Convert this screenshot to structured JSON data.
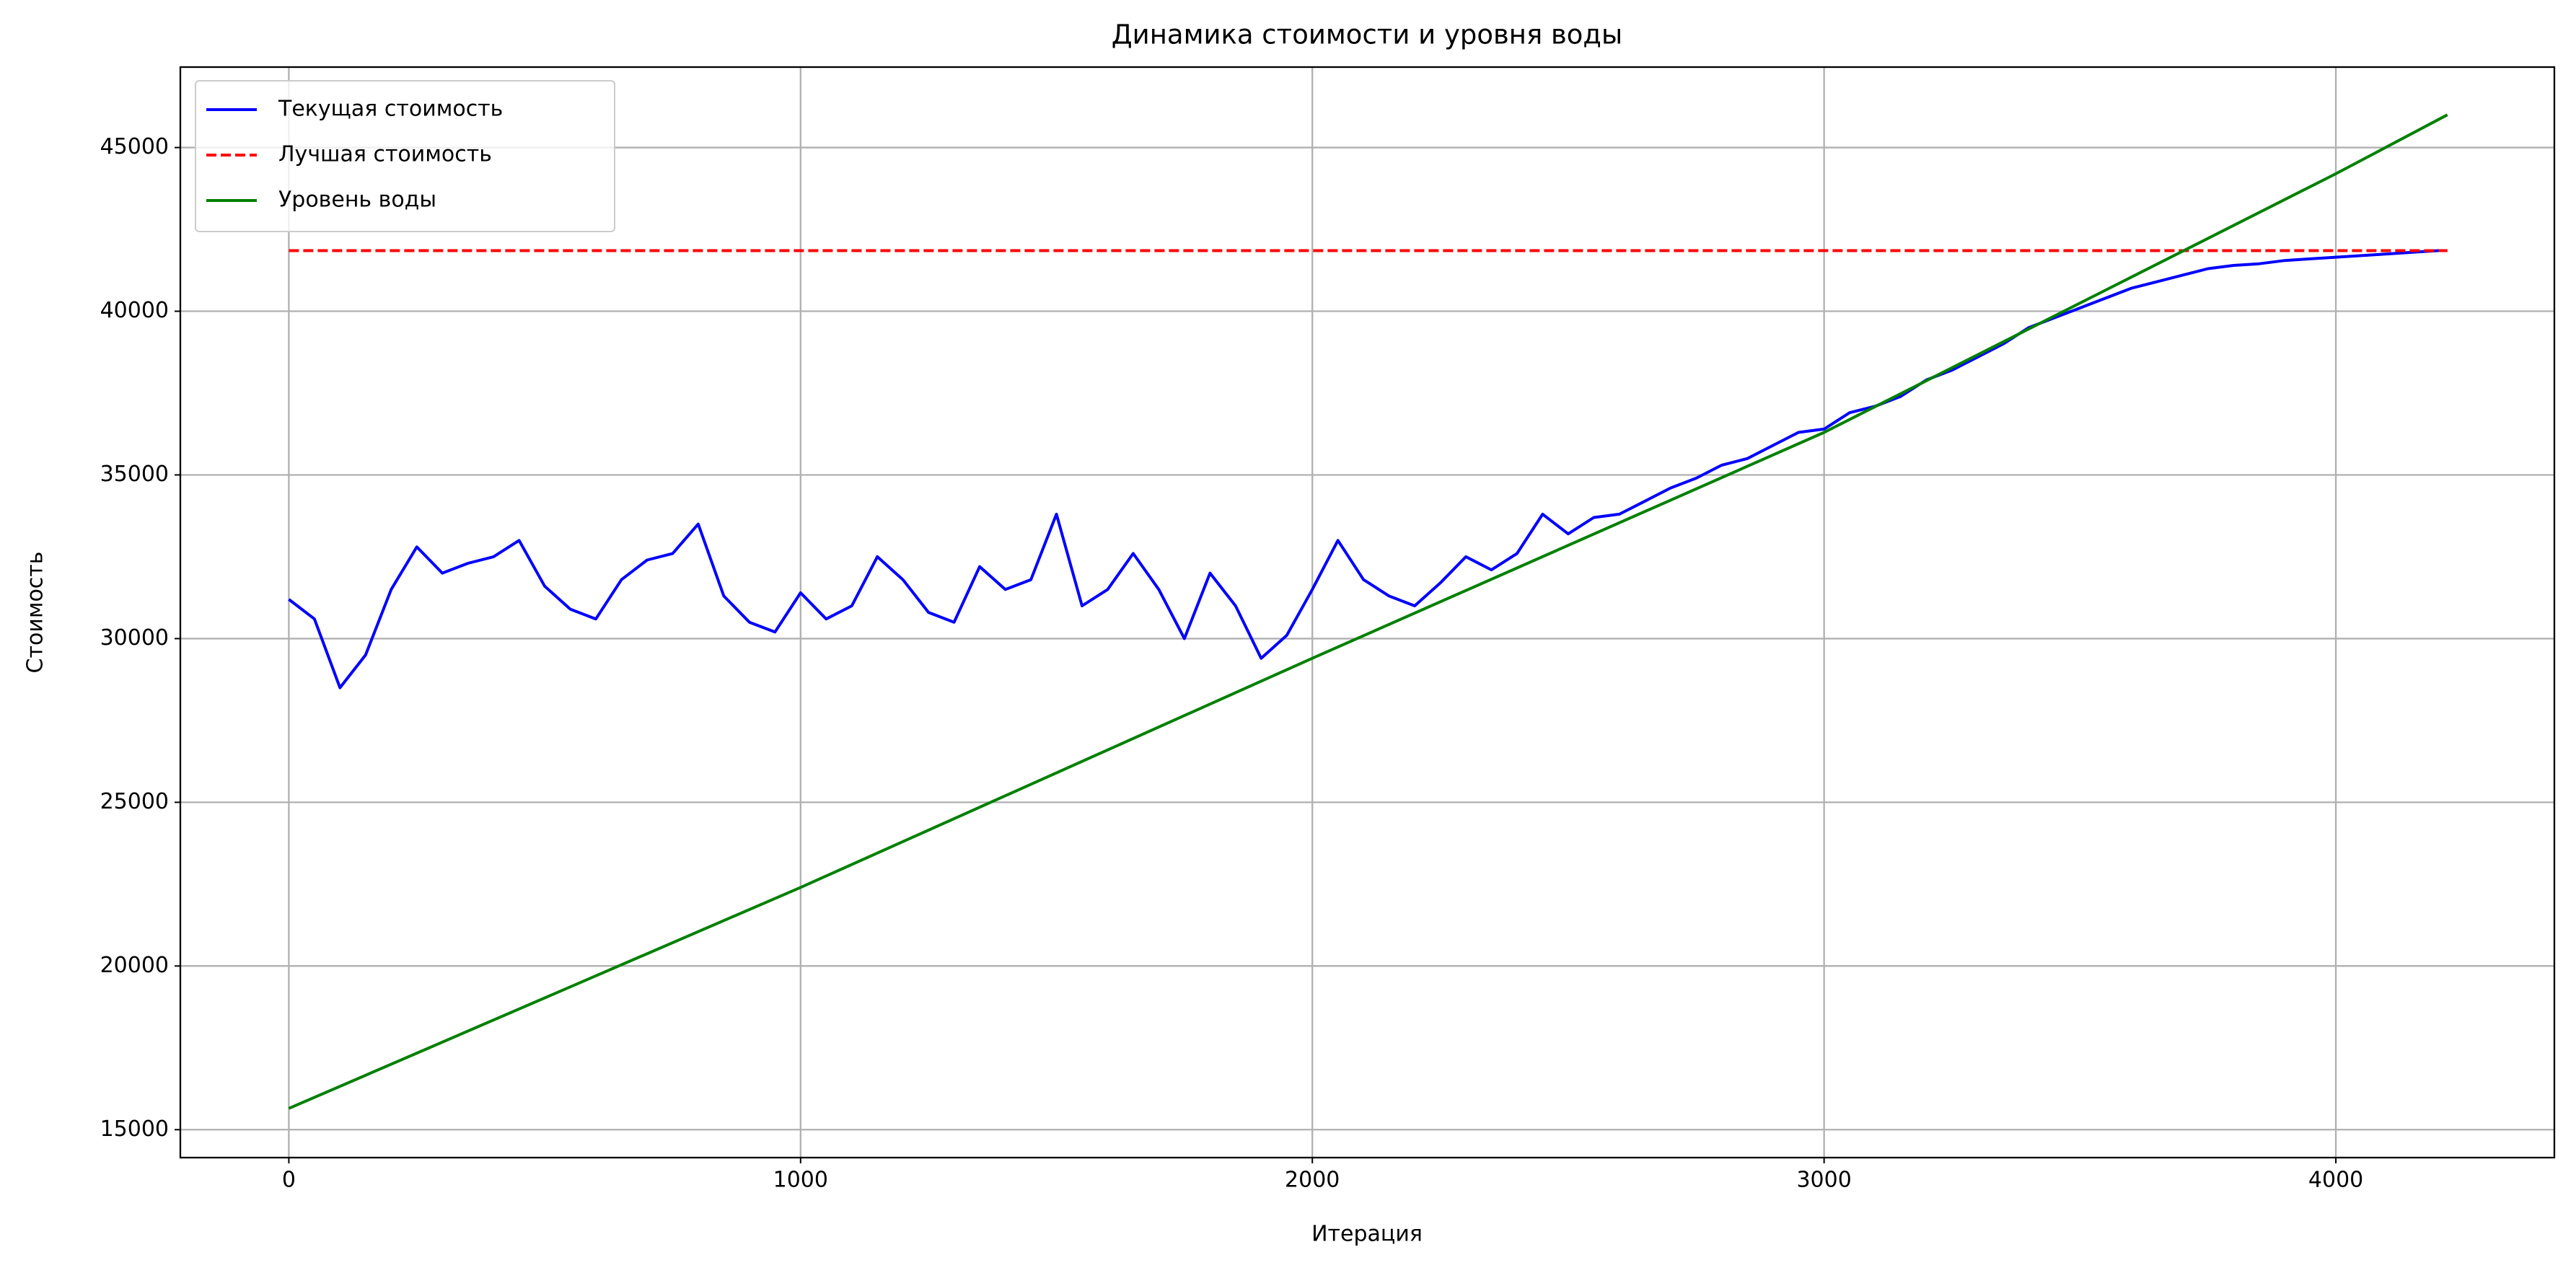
{
  "chart_data": {
    "type": "line",
    "title": "Динамика стоимости и уровня воды",
    "x_label": "Итерация",
    "y_label": "Стоимость",
    "xlim": [
      -212,
      4427
    ],
    "ylim": [
      14147,
      47458
    ],
    "xticks": [
      0,
      1000,
      2000,
      3000,
      4000
    ],
    "yticks": [
      15000,
      20000,
      25000,
      30000,
      35000,
      40000,
      45000
    ],
    "grid": true,
    "legend_loc": "upper left",
    "series": [
      {
        "name": "Текущая стоимость",
        "color": "#0000ff",
        "linestyle": "solid",
        "x": [
          0,
          50,
          100,
          150,
          200,
          250,
          300,
          350,
          400,
          450,
          500,
          550,
          600,
          650,
          700,
          750,
          800,
          850,
          900,
          950,
          1000,
          1050,
          1100,
          1150,
          1200,
          1250,
          1300,
          1350,
          1400,
          1450,
          1500,
          1550,
          1600,
          1650,
          1700,
          1750,
          1800,
          1850,
          1900,
          1950,
          2000,
          2050,
          2100,
          2150,
          2200,
          2250,
          2300,
          2350,
          2400,
          2450,
          2500,
          2550,
          2600,
          2650,
          2700,
          2750,
          2800,
          2850,
          2900,
          2950,
          3000,
          3050,
          3100,
          3150,
          3200,
          3250,
          3300,
          3350,
          3400,
          3450,
          3500,
          3550,
          3600,
          3650,
          3700,
          3750,
          3800,
          3850,
          3900,
          3950,
          4000,
          4050,
          4100,
          4150,
          4200,
          4218
        ],
        "values": [
          31200,
          30600,
          28500,
          29500,
          31500,
          32800,
          32000,
          32300,
          32500,
          33000,
          31600,
          30900,
          30600,
          31800,
          32400,
          32600,
          33500,
          31300,
          30500,
          30200,
          31400,
          30600,
          31000,
          32500,
          31800,
          30800,
          30500,
          32200,
          31500,
          31800,
          33800,
          31000,
          31500,
          32600,
          31500,
          30000,
          32000,
          31000,
          29400,
          30100,
          31500,
          33000,
          31800,
          31300,
          31000,
          31700,
          32500,
          32100,
          32600,
          33800,
          33200,
          33700,
          33800,
          34200,
          34600,
          34900,
          35300,
          35500,
          35900,
          36300,
          36400,
          36900,
          37100,
          37400,
          37900,
          38200,
          38600,
          39000,
          39500,
          39800,
          40100,
          40400,
          40700,
          40900,
          41100,
          41300,
          41400,
          41450,
          41550,
          41600,
          41650,
          41700,
          41750,
          41800,
          41850,
          41850
        ]
      },
      {
        "name": "Лучшая стоимость",
        "color": "#ff0000",
        "linestyle": "dashed",
        "x": [
          0,
          4218
        ],
        "values": [
          41850,
          41850
        ]
      },
      {
        "name": "Уровень воды",
        "color": "#008000",
        "linestyle": "solid",
        "x": [
          0,
          1000,
          2000,
          3000,
          4000,
          4218
        ],
        "values": [
          15650,
          22400,
          29400,
          36300,
          44200,
          46000
        ]
      }
    ]
  }
}
